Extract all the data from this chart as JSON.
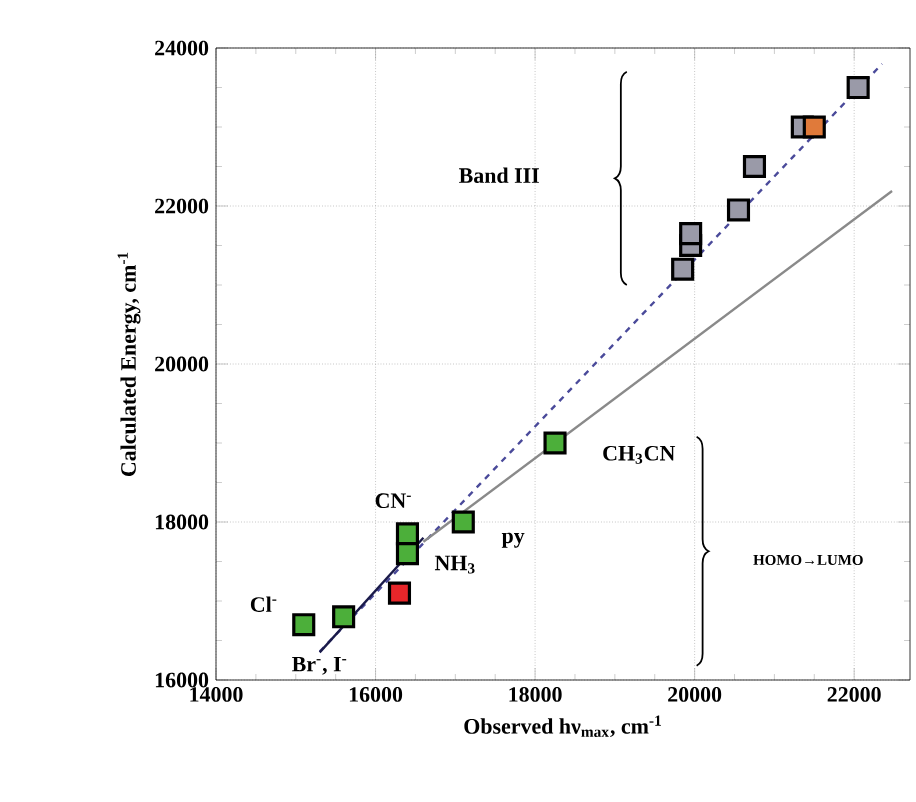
{
  "chart_data": {
    "type": "scatter",
    "xlabel": "Observed hν$_{max}$, cm$^{-1}$",
    "ylabel": "Calculated Energy, cm$^{-1}$",
    "xlim": [
      14000,
      22700
    ],
    "ylim": [
      16000,
      24000
    ],
    "xticks": [
      14000,
      16000,
      18000,
      20000,
      22000
    ],
    "yticks": [
      16000,
      18000,
      20000,
      22000,
      24000
    ],
    "grid": true,
    "marker": "square",
    "series": [
      {
        "type": "line",
        "color": "#4a4a9a",
        "line_style": "dashed",
        "marker": "none",
        "x": [
          15300,
          22350
        ],
        "values": [
          16360,
          23800
        ]
      },
      {
        "type": "line",
        "color": "#8a8a8a",
        "line_style": "solid",
        "marker": "none",
        "x": [
          16600,
          22475
        ],
        "values": [
          17750,
          22190
        ]
      },
      {
        "type": "line",
        "color": "#1a1a4a",
        "line_style": "solid",
        "marker": "none",
        "x": [
          15300,
          16600
        ],
        "values": [
          16350,
          17800
        ]
      },
      {
        "color": "#4caf3a",
        "x": [
          15100,
          15600,
          16400,
          16400,
          17100,
          18250
        ],
        "values": [
          16700,
          16800,
          17850,
          17600,
          18000,
          19000
        ]
      },
      {
        "color": "#e8262a",
        "x": [
          16300
        ],
        "values": [
          17100
        ]
      },
      {
        "color": "#9a9aa8",
        "x": [
          19850,
          19950,
          19950,
          20550,
          20750,
          21350,
          22050
        ],
        "values": [
          21200,
          21500,
          21650,
          21950,
          22500,
          23000,
          23500
        ]
      },
      {
        "color": "#e07a3a",
        "x": [
          21500
        ],
        "values": [
          23000
        ]
      }
    ],
    "annotations": [
      "Cl$^{-}$",
      "Br$^{-}$, I$^{-}$",
      "CN$^{-}$",
      "NH$_{3}$",
      "py",
      "CH$_{3}$CN",
      "Band III",
      "HOMO→LUMO"
    ]
  }
}
